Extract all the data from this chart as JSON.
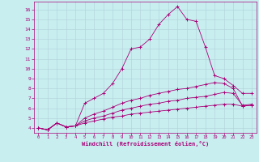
{
  "xlabel": "Windchill (Refroidissement éolien,°C)",
  "background_color": "#c8eef0",
  "line_color": "#aa0077",
  "grid_color": "#b0d0d8",
  "xlim": [
    -0.5,
    23.5
  ],
  "ylim": [
    3.5,
    16.8
  ],
  "xticks": [
    0,
    1,
    2,
    3,
    4,
    5,
    6,
    7,
    8,
    9,
    10,
    11,
    12,
    13,
    14,
    15,
    16,
    17,
    18,
    19,
    20,
    21,
    22,
    23
  ],
  "yticks": [
    4,
    5,
    6,
    7,
    8,
    9,
    10,
    11,
    12,
    13,
    14,
    15,
    16
  ],
  "series": [
    {
      "x": [
        0,
        1,
        2,
        3,
        4,
        5,
        6,
        7,
        8,
        9,
        10,
        11,
        12,
        13,
        14,
        15,
        16,
        17,
        18,
        19,
        20,
        21,
        22,
        23
      ],
      "y": [
        4.0,
        3.8,
        4.5,
        4.1,
        4.2,
        6.5,
        7.0,
        7.5,
        8.5,
        10.0,
        12.0,
        12.2,
        13.0,
        14.5,
        15.5,
        16.3,
        15.0,
        14.8,
        12.2,
        9.3,
        9.0,
        8.3,
        7.5,
        7.5
      ]
    },
    {
      "x": [
        0,
        1,
        2,
        3,
        4,
        5,
        6,
        7,
        8,
        9,
        10,
        11,
        12,
        13,
        14,
        15,
        16,
        17,
        18,
        19,
        20,
        21,
        22,
        23
      ],
      "y": [
        4.0,
        3.8,
        4.5,
        4.1,
        4.2,
        5.0,
        5.4,
        5.7,
        6.1,
        6.5,
        6.8,
        7.0,
        7.3,
        7.5,
        7.7,
        7.9,
        8.0,
        8.2,
        8.4,
        8.6,
        8.5,
        8.0,
        6.2,
        6.3
      ]
    },
    {
      "x": [
        0,
        1,
        2,
        3,
        4,
        5,
        6,
        7,
        8,
        9,
        10,
        11,
        12,
        13,
        14,
        15,
        16,
        17,
        18,
        19,
        20,
        21,
        22,
        23
      ],
      "y": [
        4.0,
        3.8,
        4.5,
        4.1,
        4.2,
        4.7,
        5.0,
        5.2,
        5.5,
        5.8,
        6.0,
        6.2,
        6.4,
        6.5,
        6.7,
        6.8,
        7.0,
        7.1,
        7.2,
        7.4,
        7.6,
        7.5,
        6.3,
        6.4
      ]
    },
    {
      "x": [
        0,
        1,
        2,
        3,
        4,
        5,
        6,
        7,
        8,
        9,
        10,
        11,
        12,
        13,
        14,
        15,
        16,
        17,
        18,
        19,
        20,
        21,
        22,
        23
      ],
      "y": [
        4.0,
        3.8,
        4.5,
        4.1,
        4.2,
        4.5,
        4.7,
        4.9,
        5.1,
        5.2,
        5.4,
        5.5,
        5.6,
        5.7,
        5.8,
        5.9,
        6.0,
        6.1,
        6.2,
        6.3,
        6.4,
        6.4,
        6.2,
        6.3
      ]
    }
  ]
}
